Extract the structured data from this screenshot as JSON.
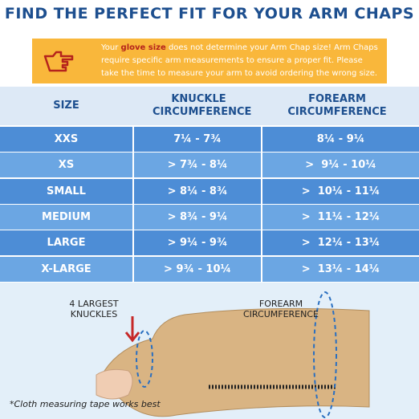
{
  "header": {
    "title": "FIND THE PERFECT FIT FOR YOUR ARM CHAPS"
  },
  "notice": {
    "before": "Your ",
    "bold": "glove size",
    "after": " does not determine your Arm Chap size! Arm Chaps require specific arm measurements to ensure a proper fit. Please take the time to measure your arm to avoid ordering the wrong size."
  },
  "table": {
    "headers": [
      "SIZE",
      "KNUCKLE CIRCUMFERENCE",
      "FOREARM CIRCUMFERENCE"
    ],
    "rows": [
      [
        "XXS",
        "7¼ - 7¾",
        "8¼ - 9¼"
      ],
      [
        "XS",
        "> 7¾ - 8¼",
        ">  9¼ - 10¼"
      ],
      [
        "SMALL",
        "> 8¼ - 8¾",
        ">  10¼ - 11¼"
      ],
      [
        "MEDIUM",
        "> 8¾ - 9¼",
        ">  11¼ - 12¼"
      ],
      [
        "LARGE",
        "> 9¼ - 9¾",
        ">  12¼ - 13¼"
      ],
      [
        "X-LARGE",
        "> 9¾ - 10¼",
        ">  13¼ - 14¼"
      ]
    ]
  },
  "illustration": {
    "knuckle_label": "4 LARGEST KNUCKLES",
    "forearm_label": "FOREARM CIRCUMFERENCE",
    "footnote": "*Cloth measuring tape works best"
  }
}
